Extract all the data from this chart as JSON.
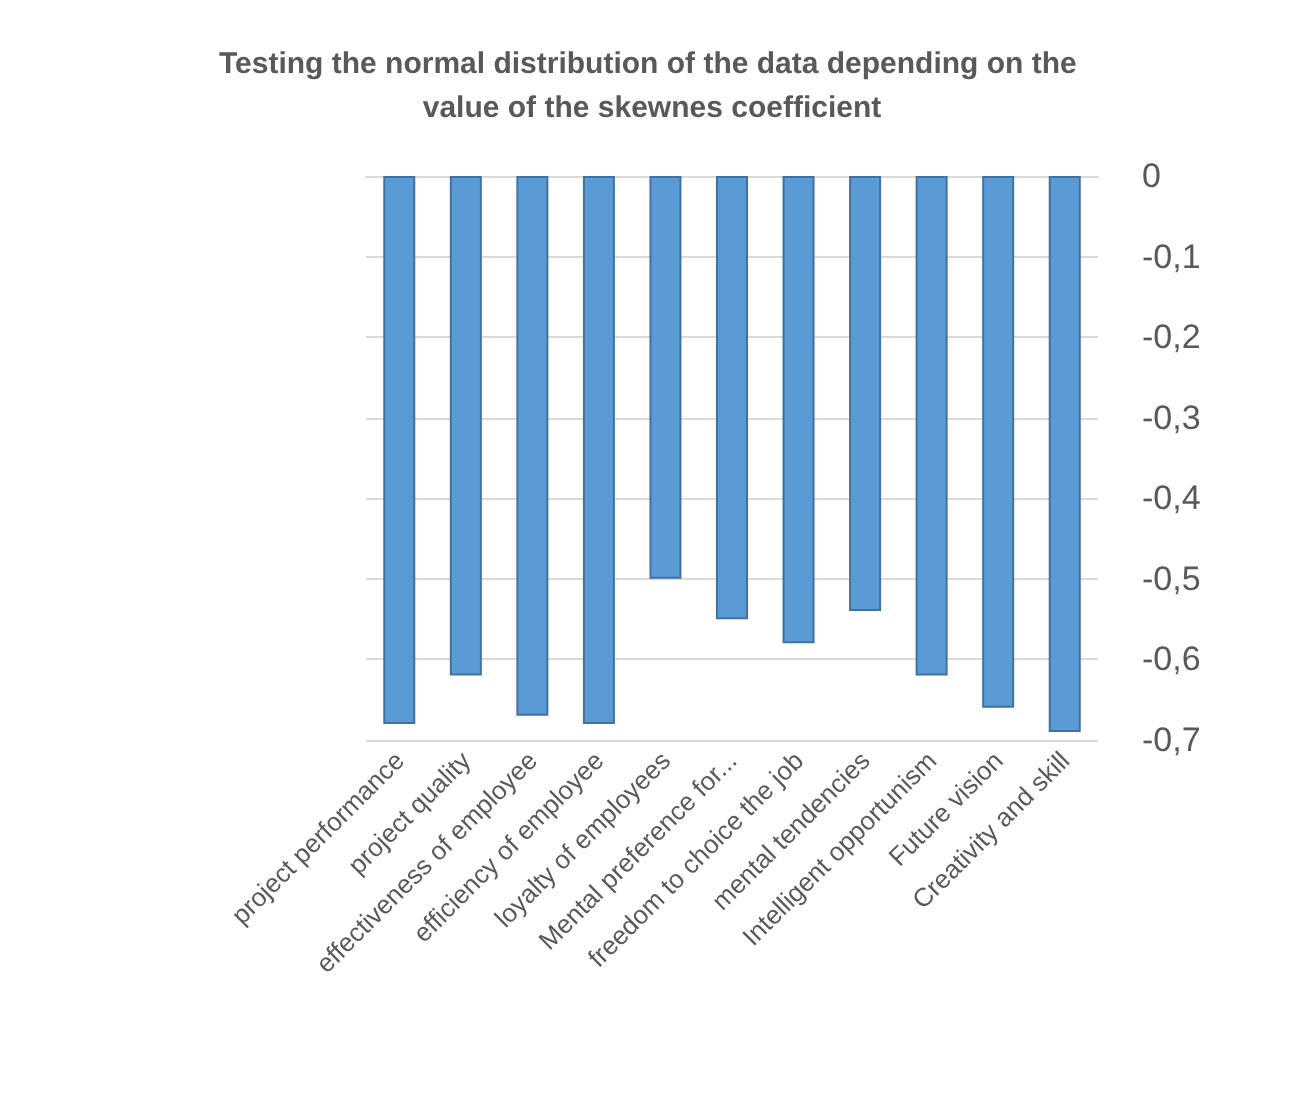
{
  "chart_data": {
    "type": "bar",
    "title": "Testing the normal distribution of the data depending on the value of the skewnes coefficient",
    "categories": [
      "project performance",
      "project quality",
      "effectiveness of employee",
      "efficiency of employee",
      "loyalty of employees",
      "Mental preference for...",
      "freedom to choice the job",
      "mental tendencies",
      "Intelligent opportunism",
      "Future vision",
      "Creativity and skill"
    ],
    "values": [
      -0.68,
      -0.62,
      -0.67,
      -0.68,
      -0.5,
      -0.55,
      -0.58,
      -0.54,
      -0.62,
      -0.66,
      -0.69
    ],
    "color": "#5b9bd5",
    "ylim": [
      -0.7,
      0
    ],
    "yticks": [
      0,
      {
        "value": -0.1,
        "label": "-0,1"
      },
      {
        "value": -0.2,
        "label": "-0,2"
      },
      {
        "value": -0.3,
        "label": "-0,3"
      },
      {
        "value": -0.4,
        "label": "-0,4"
      },
      {
        "value": -0.5,
        "label": "-0,5"
      },
      {
        "value": -0.6,
        "label": "-0,6"
      },
      {
        "value": -0.7,
        "label": "-0,7"
      }
    ],
    "grid": "y"
  }
}
